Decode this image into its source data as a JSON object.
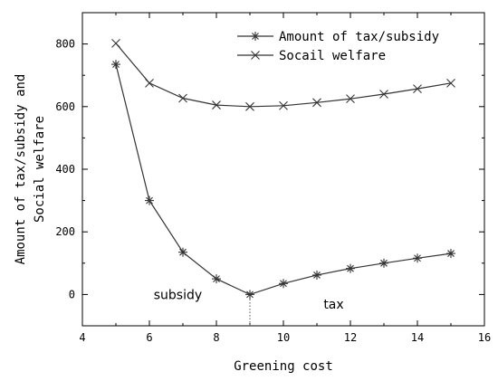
{
  "chart_data": {
    "type": "line",
    "xlabel": "Greening cost",
    "ylabel_lines": [
      "Amount of tax/subsidy and",
      "Social welfare"
    ],
    "xlim": [
      4,
      16
    ],
    "ylim": [
      -100,
      900
    ],
    "xticks": [
      4,
      6,
      8,
      10,
      12,
      14,
      16
    ],
    "yticks": [
      0,
      200,
      400,
      600,
      800
    ],
    "grid": false,
    "legend_position": "top-right",
    "x": [
      5,
      6,
      7,
      8,
      9,
      10,
      11,
      12,
      13,
      14,
      15
    ],
    "series": [
      {
        "name": "Amount of tax/subsidy",
        "marker": "asterisk",
        "values": [
          735,
          300,
          135,
          50,
          0,
          35,
          62,
          83,
          100,
          116,
          131
        ]
      },
      {
        "name": "Socail welfare",
        "marker": "x",
        "values": [
          802,
          675,
          627,
          605,
          600,
          603,
          613,
          625,
          640,
          657,
          675
        ]
      }
    ],
    "annotations": [
      {
        "text": "subsidy",
        "x": 6.85,
        "y": 0
      },
      {
        "text": "tax",
        "x": 11.5,
        "y": -30
      }
    ],
    "guide": {
      "x": 9,
      "y_from": -100,
      "y_to": 0
    }
  }
}
